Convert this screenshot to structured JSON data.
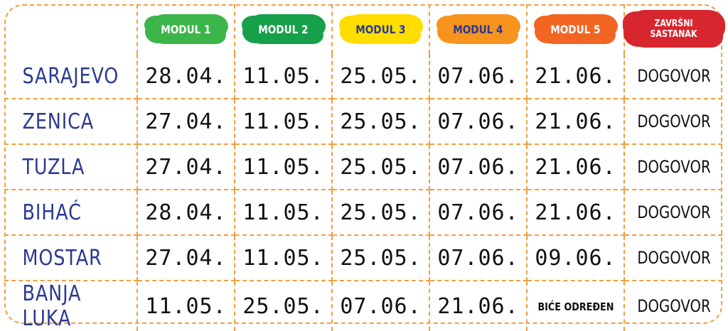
{
  "header": {
    "modules": [
      {
        "label": "MODUL 1",
        "color": "#3cb54a"
      },
      {
        "label": "MODUL 2",
        "color": "#17a04a"
      },
      {
        "label": "MODUL 3",
        "color": "#ffdd00"
      },
      {
        "label": "MODUL 4",
        "color": "#f7941d"
      },
      {
        "label": "MODUL 5",
        "color": "#f26522"
      },
      {
        "label": "ZAVRŠNI SASTANAK",
        "color": "#d7262e"
      }
    ]
  },
  "rows": [
    {
      "city": "SARAJEVO",
      "cells": [
        "28.04.",
        "11.05.",
        "25.05.",
        "07.06.",
        "21.06.",
        "DOGOVOR"
      ]
    },
    {
      "city": "ZENICA",
      "cells": [
        "27.04.",
        "11.05.",
        "25.05.",
        "07.06.",
        "21.06.",
        "DOGOVOR"
      ]
    },
    {
      "city": "TUZLA",
      "cells": [
        "27.04.",
        "11.05.",
        "25.05.",
        "07.06.",
        "21.06.",
        "DOGOVOR"
      ]
    },
    {
      "city": "BIHAĆ",
      "cells": [
        "28.04.",
        "11.05.",
        "25.05.",
        "07.06.",
        "21.06.",
        "DOGOVOR"
      ]
    },
    {
      "city": "MOSTAR",
      "cells": [
        "27.04.",
        "11.05.",
        "25.05.",
        "07.06.",
        "09.06.",
        "DOGOVOR"
      ]
    },
    {
      "city": "BANJA LUKA",
      "cells": [
        "11.05.",
        "25.05.",
        "07.06.",
        "21.06.",
        "BIĆE ODREĐEN",
        "DOGOVOR"
      ]
    }
  ],
  "colors": {
    "border": "#f0a040",
    "city_text": "#2b3990"
  }
}
